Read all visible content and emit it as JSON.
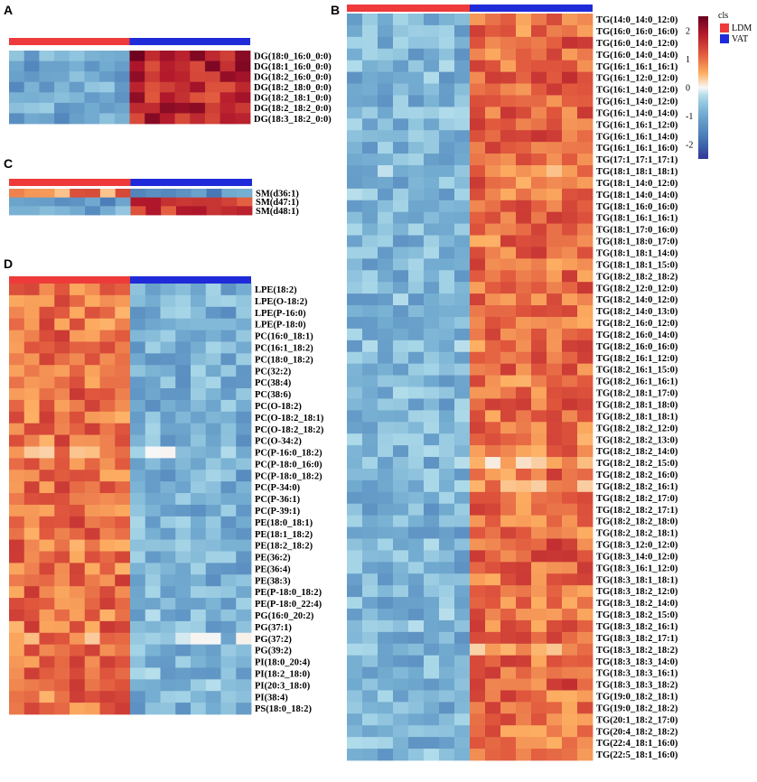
{
  "colors": {
    "ldm": "#ee3a3a",
    "vat": "#1f2bd8",
    "scale_low": "#313695",
    "scale_mid": "#f7f7f7",
    "scale_high": "#67001f"
  },
  "legend": {
    "title": "cls",
    "items": [
      {
        "label": "LDM",
        "color": "#ee3a3a"
      },
      {
        "label": "VAT",
        "color": "#1f2bd8"
      }
    ],
    "scale_ticks": [
      "2",
      "1",
      "0",
      "-1",
      "-2"
    ]
  },
  "chart_data": [
    {
      "type": "heatmap",
      "panel": "A",
      "groups": [
        {
          "name": "LDM",
          "n": 8
        },
        {
          "name": "VAT",
          "n": 8
        }
      ],
      "rows": [
        "DG(18:0_16:0_0:0)",
        "DG(18:1_16:0_0:0)",
        "DG(18:2_16:0_0:0)",
        "DG(18:2_18:0_0:0)",
        "DG(18:2_18:1_0:0)",
        "DG(18:2_18:2_0:0)",
        "DG(18:3_18:2_0:0)"
      ],
      "row_means": [
        [
          -1.0,
          1.9
        ],
        [
          -1.0,
          1.8
        ],
        [
          -1.0,
          1.8
        ],
        [
          -1.0,
          1.7
        ],
        [
          -1.0,
          1.7
        ],
        [
          -1.0,
          1.8
        ],
        [
          -1.0,
          1.7
        ]
      ],
      "vlim": [
        -2.5,
        2.5
      ]
    },
    {
      "type": "heatmap",
      "panel": "B",
      "groups": [
        {
          "name": "LDM",
          "n": 8
        },
        {
          "name": "VAT",
          "n": 8
        }
      ],
      "rows": [
        "TG(14:0_14:0_12:0)",
        "TG(16:0_16:0_16:0)",
        "TG(16:0_14:0_12:0)",
        "TG(16:0_14:0_14:0)",
        "TG(16:1_16:1_16:1)",
        "TG(16:1_12:0_12:0)",
        "TG(16:1_14:0_12:0)",
        "TG(16:1_14:0_12:0)",
        "TG(16:1_14:0_14:0)",
        "TG(16:1_16:1_12:0)",
        "TG(16:1_16:1_14:0)",
        "TG(16:1_16:1_16:0)",
        "TG(17:1_17:1_17:1)",
        "TG(18:1_18:1_18:1)",
        "TG(18:1_14:0_12:0)",
        "TG(18:1_14:0_14:0)",
        "TG(18:1_16:0_16:0)",
        "TG(18:1_16:1_16:1)",
        "TG(18:1_17:0_16:0)",
        "TG(18:1_18:0_17:0)",
        "TG(18:1_18:1_14:0)",
        "TG(18:1_18:1_15:0)",
        "TG(18:2_18:2_18:2)",
        "TG(18:2_12:0_12:0)",
        "TG(18:2_14:0_12:0)",
        "TG(18:2_14:0_13:0)",
        "TG(18:2_16:0_12:0)",
        "TG(18:2_16:0_14:0)",
        "TG(18:2_16:0_16:0)",
        "TG(18:2_16:1_12:0)",
        "TG(18:2_16:1_15:0)",
        "TG(18:2_16:1_16:1)",
        "TG(18:2_18:1_17:0)",
        "TG(18:2_18:1_18:0)",
        "TG(18:2_18:1_18:1)",
        "TG(18:2_18:2_12:0)",
        "TG(18:2_18:2_13:0)",
        "TG(18:2_18:2_14:0)",
        "TG(18:2_18:2_15:0)",
        "TG(18:2_18:2_16:0)",
        "TG(18:2_18:2_16:1)",
        "TG(18:2_18:2_17:0)",
        "TG(18:2_18:2_17:1)",
        "TG(18:2_18:2_18:0)",
        "TG(18:2_18:2_18:1)",
        "TG(18:3_12:0_12:0)",
        "TG(18:3_14:0_12:0)",
        "TG(18:3_16:1_12:0)",
        "TG(18:3_18:1_18:1)",
        "TG(18:3_18:2_12:0)",
        "TG(18:3_18:2_14:0)",
        "TG(18:3_18:2_15:0)",
        "TG(18:3_18:2_16:1)",
        "TG(18:3_18:2_17:1)",
        "TG(18:3_18:2_18:2)",
        "TG(18:3_18:3_14:0)",
        "TG(18:3_18:3_16:1)",
        "TG(18:3_18:3_18:2)",
        "TG(19:0_18:2_18:1)",
        "TG(19:0_18:2_18:2)",
        "TG(20:1_18:2_17:0)",
        "TG(20:4_18:2_18:2)",
        "TG(22:4_18:1_16:0)",
        "TG(22:5_18:1_16:0)"
      ],
      "row_means": [
        [
          -0.8,
          1.1
        ],
        [
          -0.8,
          1.0
        ],
        [
          -0.8,
          1.1
        ],
        [
          -0.8,
          1.1
        ],
        [
          -0.8,
          1.1
        ],
        [
          -0.8,
          1.2
        ],
        [
          -0.8,
          1.2
        ],
        [
          -0.8,
          1.2
        ],
        [
          -0.8,
          1.1
        ],
        [
          -0.8,
          1.1
        ],
        [
          -0.8,
          1.1
        ],
        [
          -0.8,
          1.0
        ],
        [
          -0.7,
          1.0
        ],
        [
          -0.6,
          0.9
        ],
        [
          -0.8,
          1.0
        ],
        [
          -0.8,
          1.0
        ],
        [
          -0.8,
          1.0
        ],
        [
          -0.8,
          1.0
        ],
        [
          -0.8,
          1.0
        ],
        [
          -0.8,
          1.0
        ],
        [
          -0.8,
          1.0
        ],
        [
          -0.8,
          1.0
        ],
        [
          -0.8,
          1.0
        ],
        [
          -0.8,
          1.0
        ],
        [
          -0.8,
          1.0
        ],
        [
          -0.8,
          1.0
        ],
        [
          -0.8,
          1.0
        ],
        [
          -0.8,
          1.0
        ],
        [
          -0.7,
          1.0
        ],
        [
          -0.8,
          1.0
        ],
        [
          -0.8,
          1.0
        ],
        [
          -0.8,
          1.0
        ],
        [
          -0.8,
          1.0
        ],
        [
          -0.8,
          1.0
        ],
        [
          -0.8,
          1.0
        ],
        [
          -0.8,
          1.0
        ],
        [
          -0.8,
          1.0
        ],
        [
          -0.8,
          1.0
        ],
        [
          -0.8,
          0.6
        ],
        [
          -0.7,
          1.0
        ],
        [
          -0.8,
          0.6
        ],
        [
          -0.8,
          1.0
        ],
        [
          -0.8,
          1.0
        ],
        [
          -0.8,
          1.0
        ],
        [
          -0.8,
          1.0
        ],
        [
          -0.8,
          1.1
        ],
        [
          -0.8,
          1.1
        ],
        [
          -0.8,
          1.0
        ],
        [
          -0.8,
          1.0
        ],
        [
          -0.8,
          1.0
        ],
        [
          -0.8,
          1.0
        ],
        [
          -0.8,
          1.0
        ],
        [
          -0.8,
          1.0
        ],
        [
          -0.8,
          1.0
        ],
        [
          -0.8,
          0.6
        ],
        [
          -0.8,
          1.0
        ],
        [
          -0.8,
          1.0
        ],
        [
          -0.8,
          1.1
        ],
        [
          -0.8,
          1.0
        ],
        [
          -0.8,
          1.0
        ],
        [
          -0.8,
          1.0
        ],
        [
          -0.8,
          1.0
        ],
        [
          -0.8,
          1.0
        ],
        [
          -0.8,
          1.0
        ]
      ],
      "vlim": [
        -2.5,
        2.5
      ]
    },
    {
      "type": "heatmap",
      "panel": "C",
      "groups": [
        {
          "name": "LDM",
          "n": 8
        },
        {
          "name": "VAT",
          "n": 8
        }
      ],
      "rows": [
        "SM(d36:1)",
        "SM(d47:1)",
        "SM(d48:1)"
      ],
      "row_means": [
        [
          0.9,
          -1.2
        ],
        [
          -1.2,
          1.6
        ],
        [
          -1.0,
          1.5
        ]
      ],
      "vlim": [
        -2.5,
        2.5
      ]
    },
    {
      "type": "heatmap",
      "panel": "D",
      "groups": [
        {
          "name": "LDM",
          "n": 8
        },
        {
          "name": "VAT",
          "n": 8
        }
      ],
      "rows": [
        "LPE(18:2)",
        "LPE(O-18:2)",
        "LPE(P-16:0)",
        "LPE(P-18:0)",
        "PC(16:0_18:1)",
        "PC(16:1_18:2)",
        "PC(18:0_18:2)",
        "PC(32:2)",
        "PC(38:4)",
        "PC(38:6)",
        "PC(O-18:2)",
        "PC(O-18:2_18:1)",
        "PC(O-18:2_18:2)",
        "PC(O-34:2)",
        "PC(P-16:0_18:2)",
        "PC(P-18:0_16:0)",
        "PC(P-18:0_18:2)",
        "PC(P-34:0)",
        "PC(P-36:1)",
        "PC(P-39:1)",
        "PE(18:0_18:1)",
        "PE(18:1_18:2)",
        "PE(18:2_18:2)",
        "PE(36:2)",
        "PE(36:4)",
        "PE(38:3)",
        "PE(P-18:0_18:2)",
        "PE(P-18:0_22:4)",
        "PG(16:0_20:2)",
        "PG(37:1)",
        "PG(37:2)",
        "PG(39:2)",
        "PI(18:0_20:4)",
        "PI(18:2_18:0)",
        "PI(20:3_18:0)",
        "PI(38:4)",
        "PS(18:0_18:2)"
      ],
      "row_means": [
        [
          1.0,
          -0.9
        ],
        [
          1.0,
          -0.9
        ],
        [
          1.0,
          -0.9
        ],
        [
          1.0,
          -0.9
        ],
        [
          1.0,
          -0.9
        ],
        [
          1.0,
          -0.9
        ],
        [
          1.0,
          -0.8
        ],
        [
          1.0,
          -0.9
        ],
        [
          1.0,
          -0.9
        ],
        [
          1.0,
          -0.9
        ],
        [
          1.0,
          -0.9
        ],
        [
          1.0,
          -0.9
        ],
        [
          1.0,
          -0.9
        ],
        [
          1.0,
          -0.9
        ],
        [
          0.8,
          -0.5
        ],
        [
          1.0,
          -0.9
        ],
        [
          1.0,
          -0.9
        ],
        [
          1.0,
          -0.9
        ],
        [
          1.0,
          -0.9
        ],
        [
          1.0,
          -0.9
        ],
        [
          1.0,
          -0.8
        ],
        [
          1.0,
          -0.8
        ],
        [
          1.0,
          -0.8
        ],
        [
          1.0,
          -0.9
        ],
        [
          1.0,
          -0.9
        ],
        [
          1.0,
          -0.9
        ],
        [
          1.0,
          -0.9
        ],
        [
          1.0,
          -0.8
        ],
        [
          1.0,
          -0.8
        ],
        [
          1.0,
          -0.8
        ],
        [
          0.8,
          -0.5
        ],
        [
          1.0,
          -0.8
        ],
        [
          1.0,
          -0.8
        ],
        [
          1.0,
          -0.8
        ],
        [
          1.0,
          -0.8
        ],
        [
          1.0,
          -0.8
        ],
        [
          1.0,
          -0.9
        ]
      ],
      "vlim": [
        -2.5,
        2.5
      ]
    }
  ]
}
